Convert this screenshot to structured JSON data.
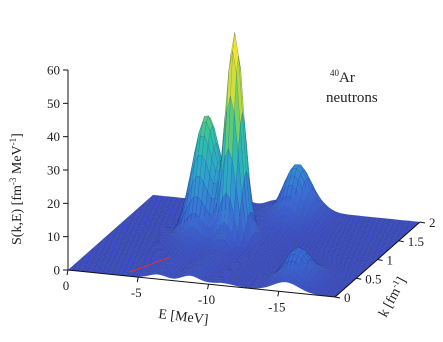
{
  "chart_data": {
    "type": "surface3d",
    "annotation": {
      "nucleus_sup": "40",
      "nucleus": "Ar",
      "particle": "neutrons"
    },
    "zlabel_parts": [
      "S(k,E) [fm",
      "-3",
      " MeV",
      "-1",
      "]"
    ],
    "xlabel": "E [MeV]",
    "ylabel_parts": [
      "k [fm",
      "-1",
      "]"
    ],
    "z_ticks": [
      "0",
      "10",
      "20",
      "30",
      "40",
      "50",
      "60"
    ],
    "e_ticks": [
      "0",
      "-5",
      "-10",
      "-15"
    ],
    "k_ticks": [
      "0",
      "0.5",
      "1",
      "1.5",
      "2"
    ],
    "zlim": [
      0,
      60
    ],
    "elim": [
      0,
      -19
    ],
    "klim": [
      0,
      2
    ],
    "colormap": [
      "#3b4cc0",
      "#3a6fd6",
      "#2f9fd0",
      "#2fc0a8",
      "#7fd35a",
      "#d8e03a",
      "#f5e62a"
    ],
    "peaks": [
      {
        "E": -8.7,
        "k": 1.05,
        "height": 60
      },
      {
        "E": -6.4,
        "k": 1.15,
        "height": 35
      },
      {
        "E": -11.0,
        "k": 1.75,
        "height": 16
      },
      {
        "E": -15.5,
        "k": 0.28,
        "height": 10
      }
    ]
  }
}
